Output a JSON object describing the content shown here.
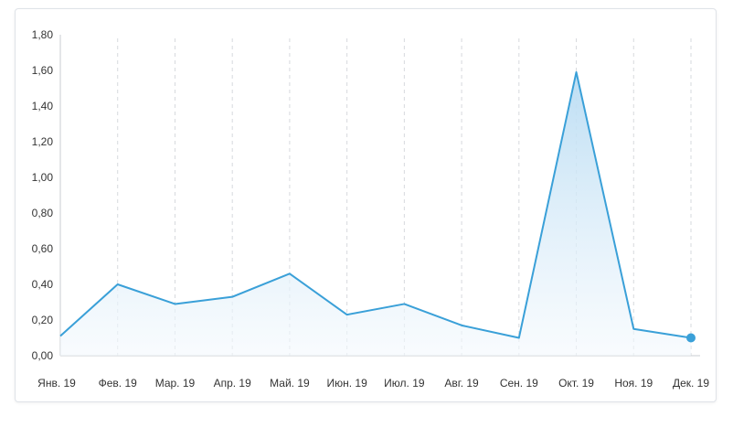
{
  "chart_data": {
    "type": "area",
    "categories": [
      "Янв. 19",
      "Фев. 19",
      "Мар. 19",
      "Апр. 19",
      "Май. 19",
      "Июн. 19",
      "Июл. 19",
      "Авг. 19",
      "Сен. 19",
      "Окт. 19",
      "Ноя. 19",
      "Дек. 19"
    ],
    "values": [
      0.11,
      0.4,
      0.29,
      0.33,
      0.46,
      0.23,
      0.29,
      0.17,
      0.1,
      1.59,
      0.15,
      0.1
    ],
    "yticks": [
      "0,00",
      "0,20",
      "0,40",
      "0,60",
      "0,80",
      "1,00",
      "1,20",
      "1,40",
      "1,60",
      "1,80"
    ],
    "ylim": [
      0,
      1.8
    ],
    "title": "",
    "xlabel": "",
    "ylabel": "",
    "grid": "vertical-dashed",
    "line_color": "#3aa0d8",
    "fill_color_top": "#b9dcf3",
    "fill_color_bottom": "#f4f9fd",
    "grid_color": "#d6d9dd",
    "highlight_last_point": true
  }
}
